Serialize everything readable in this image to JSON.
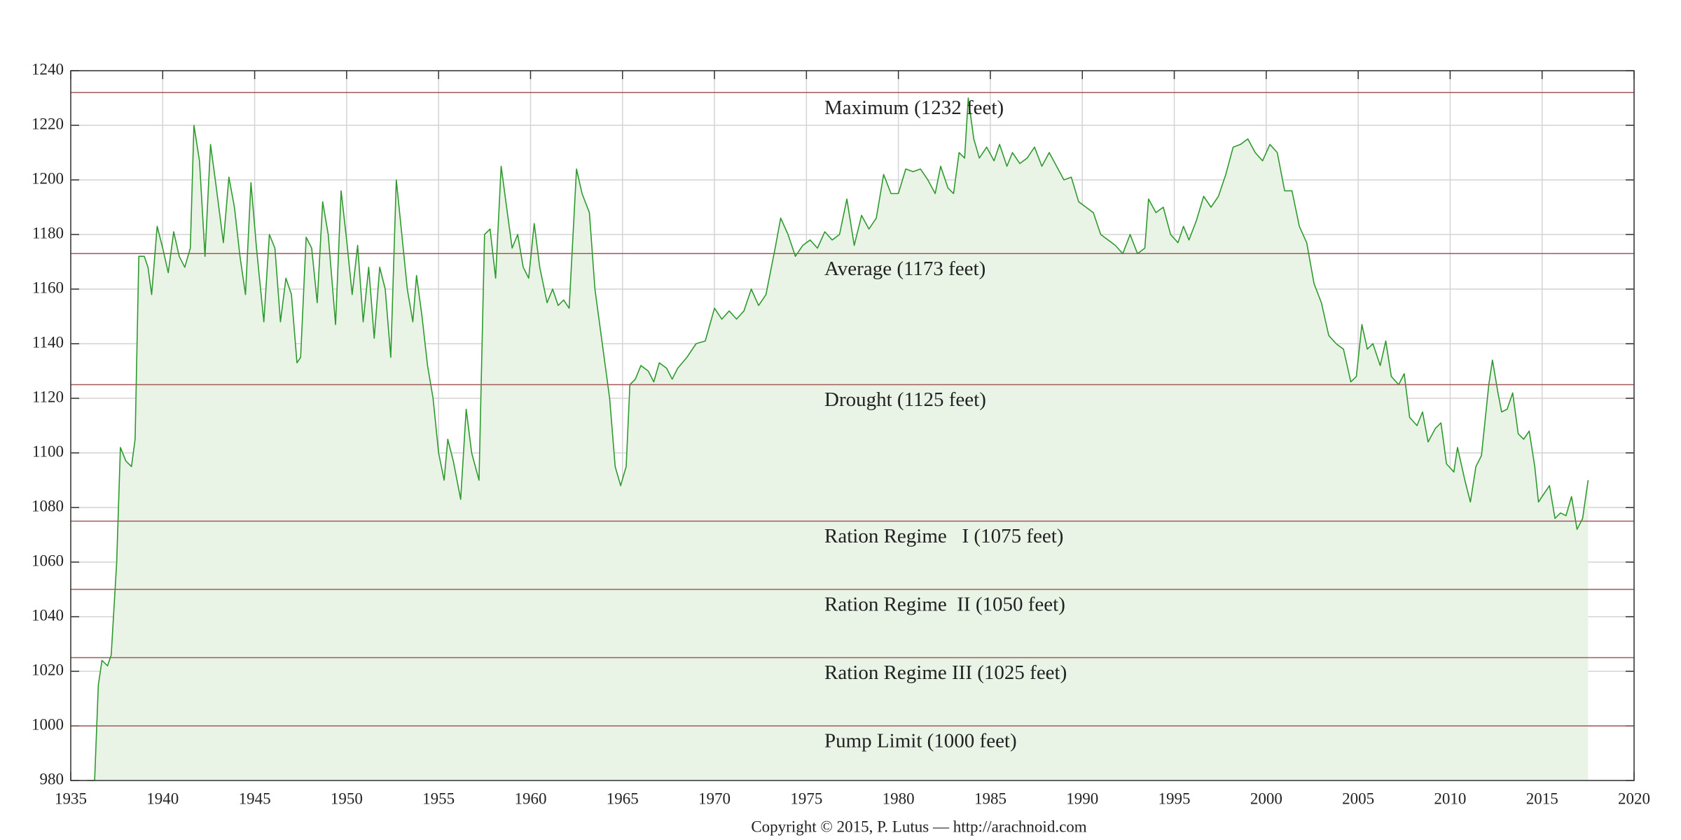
{
  "chart_data": {
    "type": "area",
    "footer": "Copyright © 2015, P. Lutus — http://arachnoid.com",
    "xlim": [
      1935,
      2020
    ],
    "xticks": [
      1935,
      1940,
      1945,
      1950,
      1955,
      1960,
      1965,
      1970,
      1975,
      1980,
      1985,
      1990,
      1995,
      2000,
      2005,
      2010,
      2015,
      2020
    ],
    "ylim": [
      980,
      1240
    ],
    "yticks": [
      980,
      1000,
      1020,
      1040,
      1060,
      1080,
      1100,
      1120,
      1140,
      1160,
      1180,
      1200,
      1220,
      1240
    ],
    "grid": true,
    "color": "#2e9a2e",
    "fill": "#e9f4e7",
    "reference_lines": [
      {
        "label": "Maximum (1232 feet)",
        "value": 1232,
        "color": "#a05a5a"
      },
      {
        "label": "Average (1173 feet)",
        "value": 1173,
        "color": "#a05a5a"
      },
      {
        "label": "Drought (1125 feet)",
        "value": 1125,
        "color": "#a05a5a"
      },
      {
        "label": "Ration Regime   I (1075 feet)",
        "value": 1075,
        "color": "#a05a5a"
      },
      {
        "label": "Ration Regime  II (1050 feet)",
        "value": 1050,
        "color": "#a05a5a"
      },
      {
        "label": "Ration Regime III (1025 feet)",
        "value": 1025,
        "color": "#a05a5a"
      },
      {
        "label": "Pump Limit (1000 feet)",
        "value": 1000,
        "color": "#a05a5a"
      }
    ],
    "x": [
      1935.9,
      1936.3,
      1936.5,
      1936.7,
      1937.0,
      1937.2,
      1937.5,
      1937.7,
      1938.0,
      1938.3,
      1938.5,
      1938.7,
      1939.0,
      1939.2,
      1939.4,
      1939.7,
      1940.0,
      1940.3,
      1940.6,
      1940.9,
      1941.2,
      1941.5,
      1941.7,
      1942.0,
      1942.3,
      1942.6,
      1942.9,
      1943.3,
      1943.6,
      1943.9,
      1944.2,
      1944.5,
      1944.8,
      1945.1,
      1945.5,
      1945.8,
      1946.1,
      1946.4,
      1946.7,
      1947.0,
      1947.3,
      1947.5,
      1947.8,
      1948.1,
      1948.4,
      1948.7,
      1949.0,
      1949.4,
      1949.7,
      1950.0,
      1950.3,
      1950.6,
      1950.9,
      1951.2,
      1951.5,
      1951.8,
      1952.1,
      1952.4,
      1952.7,
      1953.0,
      1953.3,
      1953.6,
      1953.8,
      1954.1,
      1954.4,
      1954.7,
      1955.0,
      1955.3,
      1955.5,
      1955.8,
      1956.2,
      1956.5,
      1956.8,
      1957.2,
      1957.5,
      1957.8,
      1958.1,
      1958.4,
      1958.7,
      1959.0,
      1959.3,
      1959.6,
      1959.9,
      1960.2,
      1960.5,
      1960.9,
      1961.2,
      1961.5,
      1961.8,
      1962.1,
      1962.5,
      1962.8,
      1963.2,
      1963.5,
      1963.9,
      1964.3,
      1964.6,
      1964.9,
      1965.2,
      1965.4,
      1965.7,
      1966.0,
      1966.4,
      1966.7,
      1967.0,
      1967.4,
      1967.7,
      1968.0,
      1968.5,
      1969.0,
      1969.5,
      1970.0,
      1970.4,
      1970.8,
      1971.2,
      1971.6,
      1972.0,
      1972.4,
      1972.8,
      1973.3,
      1973.6,
      1974.0,
      1974.4,
      1974.8,
      1975.2,
      1975.6,
      1976.0,
      1976.4,
      1976.8,
      1977.2,
      1977.6,
      1978.0,
      1978.4,
      1978.8,
      1979.2,
      1979.6,
      1980.0,
      1980.4,
      1980.8,
      1981.2,
      1981.6,
      1982.0,
      1982.3,
      1982.7,
      1983.0,
      1983.3,
      1983.6,
      1983.8,
      1984.1,
      1984.4,
      1984.8,
      1985.2,
      1985.5,
      1985.9,
      1986.2,
      1986.6,
      1987.0,
      1987.4,
      1987.8,
      1988.2,
      1988.6,
      1989.0,
      1989.4,
      1989.8,
      1990.2,
      1990.6,
      1991.0,
      1991.4,
      1991.8,
      1992.2,
      1992.6,
      1993.0,
      1993.4,
      1993.6,
      1994.0,
      1994.4,
      1994.8,
      1995.2,
      1995.5,
      1995.8,
      1996.2,
      1996.6,
      1997.0,
      1997.4,
      1997.8,
      1998.2,
      1998.6,
      1999.0,
      1999.4,
      1999.8,
      2000.2,
      2000.6,
      2001.0,
      2001.4,
      2001.8,
      2002.2,
      2002.6,
      2003.0,
      2003.4,
      2003.8,
      2004.2,
      2004.6,
      2004.9,
      2005.2,
      2005.5,
      2005.8,
      2006.2,
      2006.5,
      2006.8,
      2007.2,
      2007.5,
      2007.8,
      2008.2,
      2008.5,
      2008.8,
      2009.2,
      2009.5,
      2009.8,
      2010.2,
      2010.4,
      2010.8,
      2011.1,
      2011.4,
      2011.7,
      2012.1,
      2012.3,
      2012.6,
      2012.8,
      2013.1,
      2013.4,
      2013.7,
      2014.0,
      2014.3,
      2014.6,
      2014.8,
      2015.1,
      2015.4,
      2015.7,
      2016.0,
      2016.3,
      2016.6,
      2016.9,
      2017.2,
      2017.5
    ],
    "values": [
      980,
      980,
      1015,
      1024,
      1022,
      1026,
      1060,
      1102,
      1097,
      1095,
      1105,
      1172,
      1172,
      1168,
      1158,
      1183,
      1175,
      1166,
      1181,
      1172,
      1168,
      1175,
      1220,
      1207,
      1172,
      1213,
      1198,
      1177,
      1201,
      1190,
      1172,
      1158,
      1199,
      1175,
      1148,
      1180,
      1175,
      1148,
      1164,
      1158,
      1133,
      1135,
      1179,
      1175,
      1155,
      1192,
      1180,
      1147,
      1196,
      1178,
      1158,
      1176,
      1148,
      1168,
      1142,
      1168,
      1160,
      1135,
      1200,
      1180,
      1160,
      1148,
      1165,
      1150,
      1132,
      1120,
      1100,
      1090,
      1105,
      1097,
      1083,
      1116,
      1100,
      1090,
      1180,
      1182,
      1164,
      1205,
      1190,
      1175,
      1180,
      1168,
      1164,
      1184,
      1168,
      1155,
      1160,
      1154,
      1156,
      1153,
      1204,
      1195,
      1188,
      1160,
      1140,
      1120,
      1095,
      1088,
      1095,
      1125,
      1127,
      1132,
      1130,
      1126,
      1133,
      1131,
      1127,
      1131,
      1135,
      1140,
      1141,
      1153,
      1149,
      1152,
      1149,
      1152,
      1160,
      1154,
      1158,
      1175,
      1186,
      1180,
      1172,
      1176,
      1178,
      1175,
      1181,
      1178,
      1180,
      1193,
      1176,
      1187,
      1182,
      1186,
      1202,
      1195,
      1195,
      1204,
      1203,
      1204,
      1200,
      1195,
      1205,
      1197,
      1195,
      1210,
      1208,
      1230,
      1215,
      1208,
      1212,
      1207,
      1213,
      1205,
      1210,
      1206,
      1208,
      1212,
      1205,
      1210,
      1205,
      1200,
      1201,
      1192,
      1190,
      1188,
      1180,
      1178,
      1176,
      1173,
      1180,
      1173,
      1175,
      1193,
      1188,
      1190,
      1180,
      1177,
      1183,
      1178,
      1185,
      1194,
      1190,
      1194,
      1202,
      1212,
      1213,
      1215,
      1210,
      1207,
      1213,
      1210,
      1196,
      1196,
      1183,
      1177,
      1162,
      1155,
      1143,
      1140,
      1138,
      1126,
      1128,
      1147,
      1138,
      1140,
      1132,
      1141,
      1128,
      1125,
      1129,
      1113,
      1110,
      1115,
      1104,
      1109,
      1111,
      1096,
      1093,
      1102,
      1090,
      1082,
      1095,
      1099,
      1125,
      1134,
      1122,
      1115,
      1116,
      1122,
      1107,
      1105,
      1108,
      1095,
      1082,
      1085,
      1088,
      1076,
      1078,
      1077,
      1084,
      1072,
      1076,
      1090
    ]
  }
}
